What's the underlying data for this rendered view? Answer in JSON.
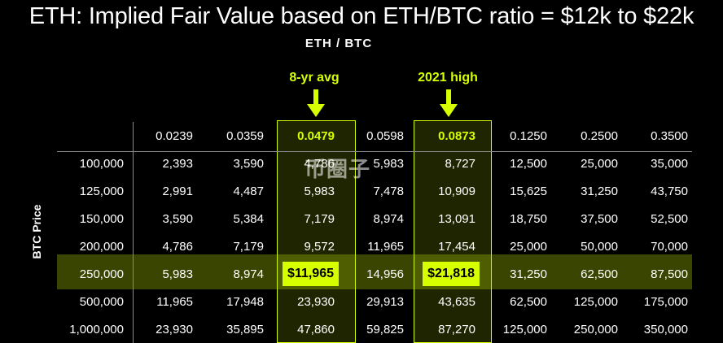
{
  "title": "ETH: Implied Fair Value based on ETH/BTC ratio = $12k to $22k",
  "subtitle": "ETH / BTC",
  "callouts": {
    "avg_label": "8-yr avg",
    "high_label": "2021 high"
  },
  "y_axis_label": "BTC Price",
  "watermark": "币圈子",
  "colors": {
    "accent": "#d8ff00",
    "background": "#000000",
    "text": "#ffffff"
  },
  "chart_data": {
    "type": "table",
    "title": "ETH: Implied Fair Value based on ETH/BTC ratio = $12k to $22k",
    "column_header": "ETH / BTC",
    "row_header": "BTC Price",
    "columns": [
      "0.0239",
      "0.0359",
      "0.0479",
      "0.0598",
      "0.0873",
      "0.1250",
      "0.2500",
      "0.3500"
    ],
    "highlighted_columns": [
      "0.0479",
      "0.0873"
    ],
    "highlighted_row": "250,000",
    "rows": [
      {
        "btc": "100,000",
        "values": [
          "2,393",
          "3,590",
          "4,786",
          "5,983",
          "8,727",
          "12,500",
          "25,000",
          "35,000"
        ]
      },
      {
        "btc": "125,000",
        "values": [
          "2,991",
          "4,487",
          "5,983",
          "7,478",
          "10,909",
          "15,625",
          "31,250",
          "43,750"
        ]
      },
      {
        "btc": "150,000",
        "values": [
          "3,590",
          "5,384",
          "7,179",
          "8,974",
          "13,091",
          "18,750",
          "37,500",
          "52,500"
        ]
      },
      {
        "btc": "200,000",
        "values": [
          "4,786",
          "7,179",
          "9,572",
          "11,965",
          "17,454",
          "25,000",
          "50,000",
          "70,000"
        ]
      },
      {
        "btc": "250,000",
        "values": [
          "5,983",
          "8,974",
          "$11,965",
          "14,956",
          "$21,818",
          "31,250",
          "62,500",
          "87,500"
        ]
      },
      {
        "btc": "500,000",
        "values": [
          "11,965",
          "17,948",
          "23,930",
          "29,913",
          "43,635",
          "62,500",
          "125,000",
          "175,000"
        ]
      },
      {
        "btc": "1,000,000",
        "values": [
          "23,930",
          "35,895",
          "47,860",
          "59,825",
          "87,270",
          "125,000",
          "250,000",
          "350,000"
        ]
      }
    ]
  }
}
